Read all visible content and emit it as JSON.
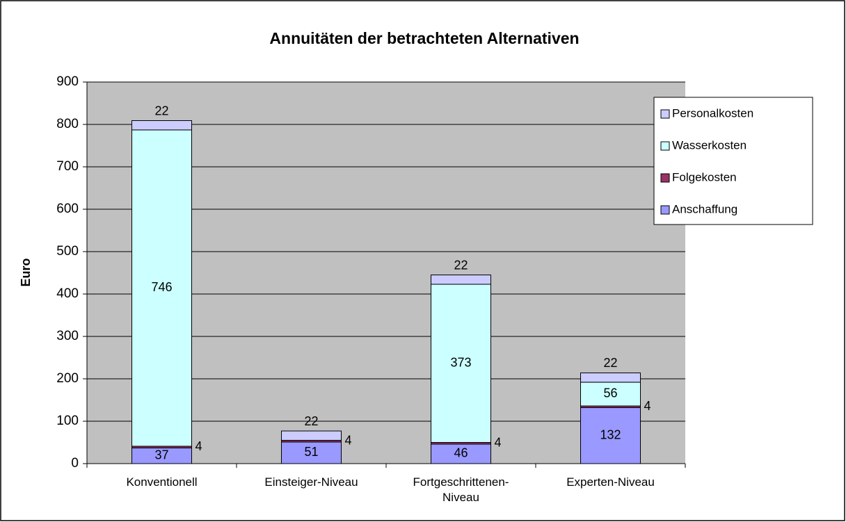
{
  "chart_data": {
    "type": "stacked_bar",
    "title": "Annuitäten der betrachteten Alternativen",
    "y_label": "Euro",
    "categories": [
      "Konventionell",
      "Einsteiger-Niveau",
      "Fortgeschrittenen-Niveau",
      "Experten-Niveau"
    ],
    "series": [
      {
        "name": "Anschaffung",
        "color": "#9999ff",
        "values": [
          37,
          51,
          46,
          132
        ]
      },
      {
        "name": "Folgekosten",
        "color": "#993366",
        "values": [
          4,
          4,
          4,
          4
        ]
      },
      {
        "name": "Wasserkosten",
        "color": "#ccffff",
        "values": [
          746,
          null,
          373,
          56
        ]
      },
      {
        "name": "Personalkosten",
        "color": "#ccccff",
        "values": [
          22,
          22,
          22,
          22
        ]
      }
    ],
    "ylim": [
      0,
      900
    ],
    "yticks": [
      0,
      100,
      200,
      300,
      400,
      500,
      600,
      700,
      800,
      900
    ],
    "grid": true,
    "legend": "right"
  }
}
